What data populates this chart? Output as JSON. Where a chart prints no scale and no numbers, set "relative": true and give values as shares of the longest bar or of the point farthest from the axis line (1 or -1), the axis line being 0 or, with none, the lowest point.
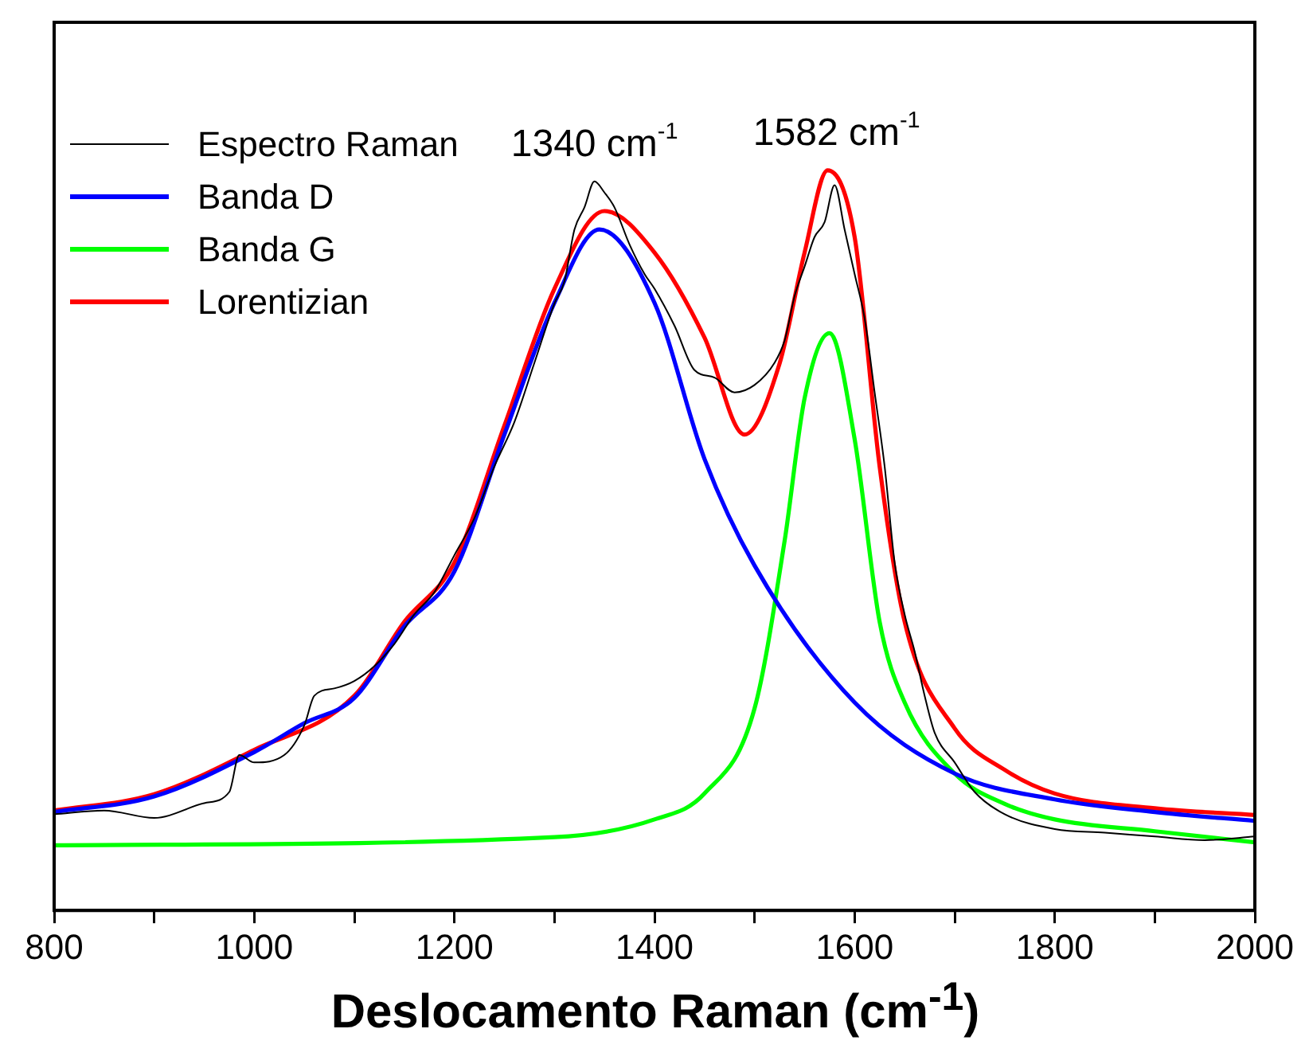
{
  "chart_data": {
    "type": "line",
    "relative": true,
    "xlabel": "Deslocamento Raman (cm$^{-1}$)",
    "xlim": [
      800,
      2000
    ],
    "xticks": [
      800,
      {
        "value": 900,
        "label": null
      },
      1000,
      {
        "value": 1100,
        "label": null
      },
      1200,
      {
        "value": 1300,
        "label": null
      },
      1400,
      {
        "value": 1500,
        "label": null
      },
      1600,
      {
        "value": 1700,
        "label": null
      },
      1800,
      {
        "value": 1900,
        "label": null
      },
      2000
    ],
    "grid": false,
    "legend": "top left",
    "marker": "none",
    "line_style": "solid",
    "annotations": [
      {
        "text": "1340 cm$^{-1}$",
        "x": 1340,
        "y": 0.985
      },
      {
        "text": "1582 cm$^{-1}$",
        "x": 1582,
        "y": 1.0
      }
    ],
    "series": [
      {
        "name": "Espectro Raman",
        "color": "#000000",
        "x": [
          800,
          850,
          900,
          950,
          975,
          985,
          1000,
          1030,
          1050,
          1060,
          1080,
          1100,
          1120,
          1140,
          1160,
          1180,
          1200,
          1220,
          1240,
          1260,
          1280,
          1300,
          1310,
          1320,
          1330,
          1340,
          1350,
          1360,
          1375,
          1390,
          1400,
          1420,
          1440,
          1460,
          1480,
          1500,
          1520,
          1530,
          1540,
          1550,
          1560,
          1570,
          1580,
          1590,
          1600,
          1610,
          1620,
          1630,
          1640,
          1650,
          1660,
          1670,
          1680,
          1700,
          1720,
          1750,
          1800,
          1850,
          1900,
          1950,
          2000
        ],
        "values": [
          0.13,
          0.135,
          0.125,
          0.145,
          0.16,
          0.21,
          0.2,
          0.21,
          0.25,
          0.29,
          0.3,
          0.31,
          0.33,
          0.36,
          0.4,
          0.43,
          0.48,
          0.53,
          0.6,
          0.66,
          0.74,
          0.82,
          0.85,
          0.92,
          0.95,
          0.985,
          0.97,
          0.95,
          0.9,
          0.86,
          0.84,
          0.79,
          0.73,
          0.72,
          0.7,
          0.71,
          0.74,
          0.77,
          0.83,
          0.87,
          0.91,
          0.93,
          0.98,
          0.92,
          0.86,
          0.8,
          0.7,
          0.6,
          0.47,
          0.4,
          0.35,
          0.29,
          0.24,
          0.2,
          0.16,
          0.13,
          0.11,
          0.105,
          0.1,
          0.095,
          0.1
        ]
      },
      {
        "name": "Banda D",
        "color": "#0000ff",
        "x": [
          800,
          900,
          1000,
          1050,
          1100,
          1150,
          1200,
          1250,
          1300,
          1345,
          1400,
          1450,
          1500,
          1600,
          1700,
          1800,
          1900,
          2000
        ],
        "values": [
          0.133,
          0.154,
          0.214,
          0.253,
          0.287,
          0.384,
          0.458,
          0.643,
          0.821,
          0.92,
          0.821,
          0.61,
          0.466,
          0.281,
          0.185,
          0.15,
          0.133,
          0.121
        ]
      },
      {
        "name": "Banda G",
        "color": "#00ff00",
        "x": [
          800,
          1300,
          1400,
          1450,
          1500,
          1530,
          1550,
          1575,
          1600,
          1625,
          1650,
          1700,
          1750,
          1800,
          1900,
          2000
        ],
        "values": [
          0.088,
          0.099,
          0.123,
          0.158,
          0.273,
          0.499,
          0.692,
          0.78,
          0.637,
          0.39,
          0.281,
          0.185,
          0.144,
          0.123,
          0.107,
          0.092
        ]
      },
      {
        "name": "Lorentizian",
        "color": "#ff0000",
        "x": [
          800,
          900,
          1000,
          1100,
          1150,
          1200,
          1250,
          1300,
          1350,
          1400,
          1450,
          1490,
          1525,
          1550,
          1573,
          1600,
          1625,
          1650,
          1700,
          1750,
          1800,
          1900,
          2000
        ],
        "values": [
          0.135,
          0.157,
          0.217,
          0.29,
          0.39,
          0.47,
          0.655,
          0.84,
          0.945,
          0.889,
          0.774,
          0.643,
          0.739,
          0.889,
          1.0,
          0.91,
          0.6,
          0.39,
          0.246,
          0.19,
          0.158,
          0.138,
          0.129
        ]
      }
    ]
  }
}
